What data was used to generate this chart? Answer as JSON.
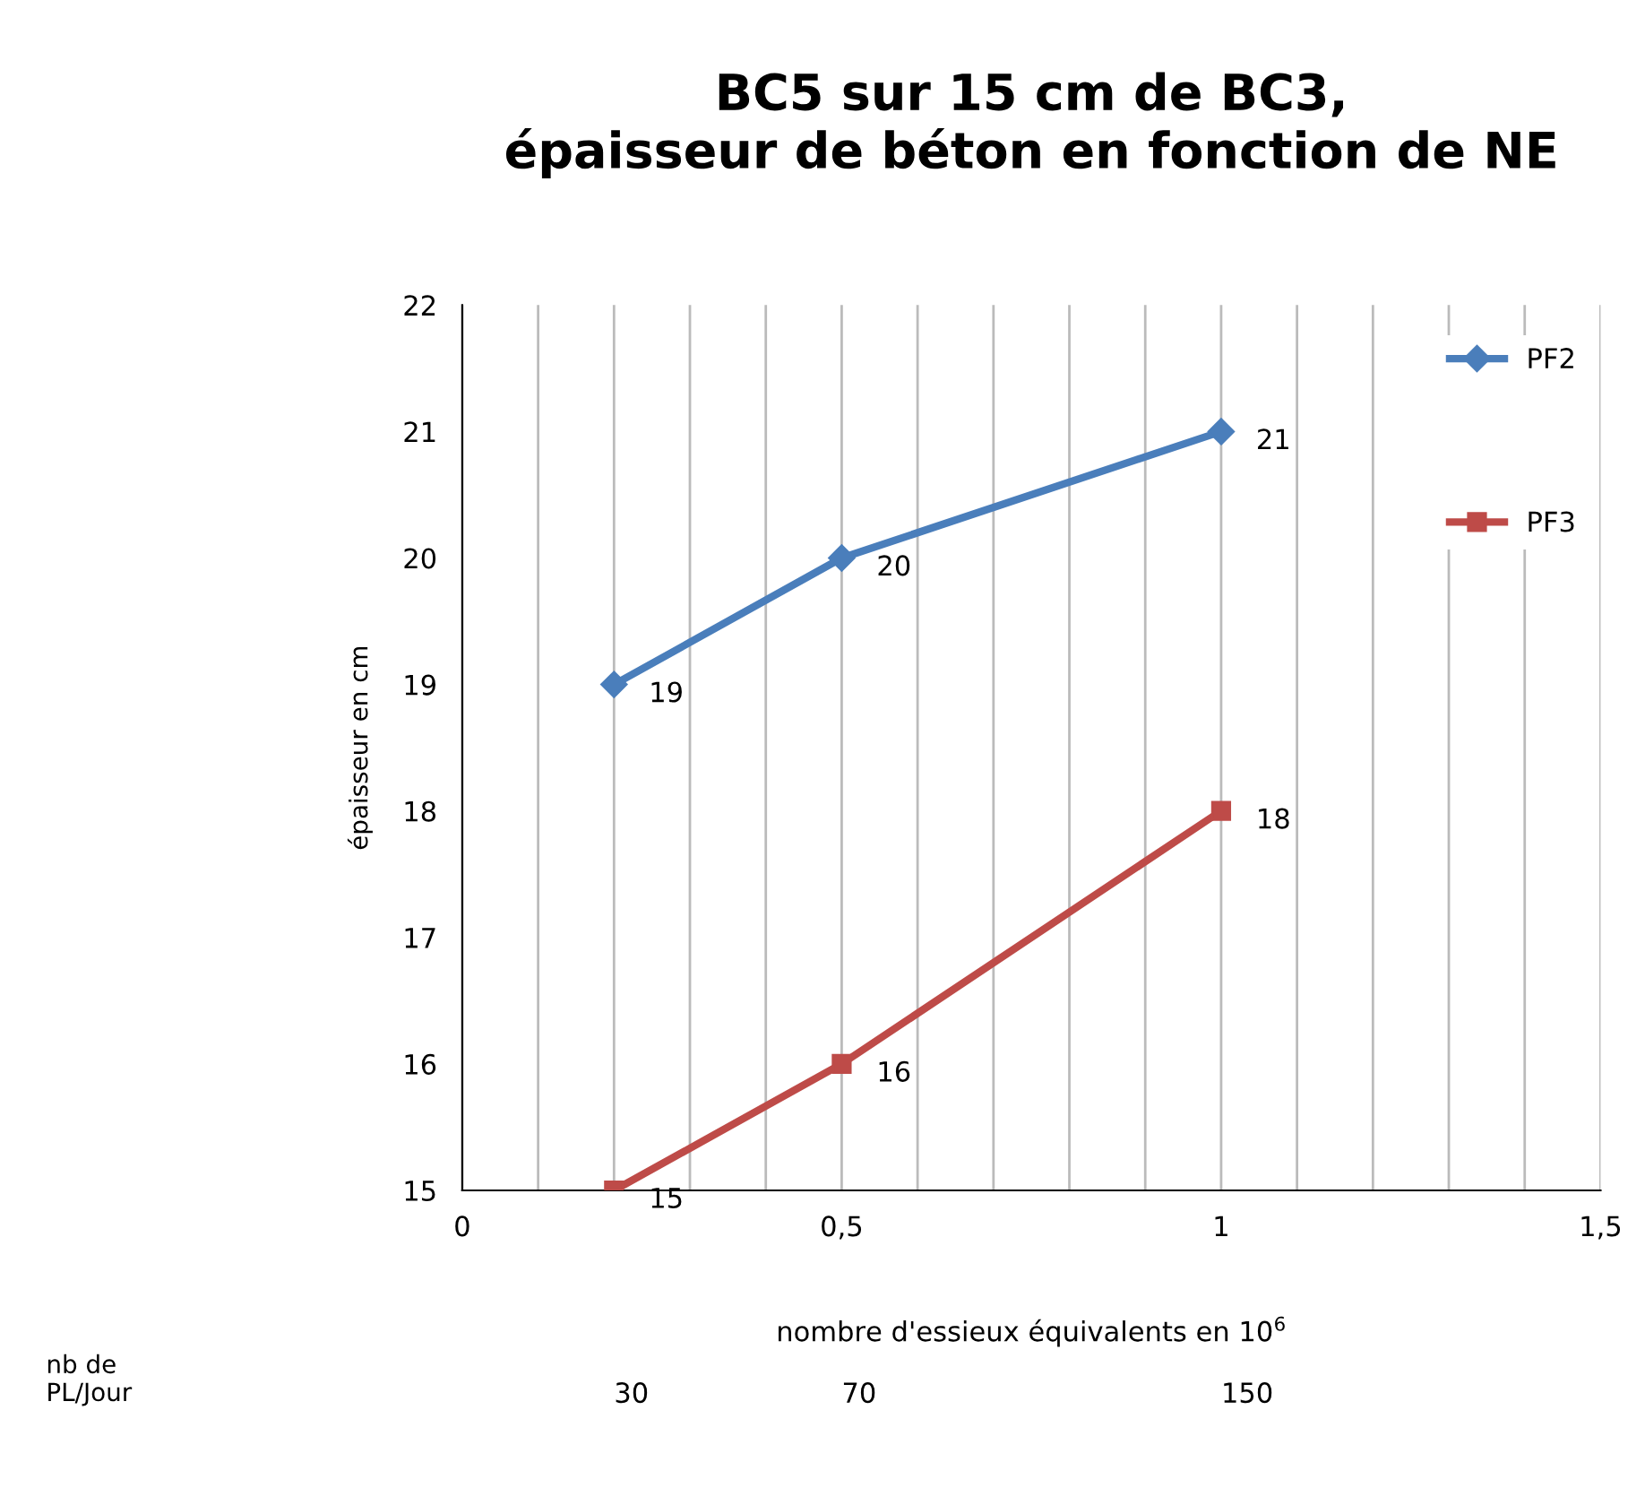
{
  "chart_data": {
    "type": "line",
    "title": "BC5 sur 15 cm de BC3,\népaisseur de béton en fonction de NE",
    "xlabel": "nombre d'essieux équivalents en 10$^{6}$",
    "ylabel": "épaisseur en cm",
    "x": [
      0.2,
      0.5,
      1
    ],
    "series": [
      {
        "name": "PF2",
        "color": "#4a7ebb",
        "marker": "diamond",
        "values": [
          19,
          20,
          21
        ]
      },
      {
        "name": "PF3",
        "color": "#be4b48",
        "marker": "square",
        "values": [
          15,
          16,
          18
        ]
      }
    ],
    "xlim": [
      0,
      1.5
    ],
    "xticks": [
      0,
      {
        "value": 0.1,
        "label": null
      },
      {
        "value": 0.2,
        "label": null
      },
      {
        "value": 0.3,
        "label": null
      },
      {
        "value": 0.4,
        "label": null
      },
      {
        "value": 0.5,
        "label": "0,5"
      },
      {
        "value": 0.6,
        "label": null
      },
      {
        "value": 0.7,
        "label": null
      },
      {
        "value": 0.8,
        "label": null
      },
      {
        "value": 0.9,
        "label": null
      },
      1,
      {
        "value": 1.1,
        "label": null
      },
      {
        "value": 1.2,
        "label": null
      },
      {
        "value": 1.3,
        "label": null
      },
      {
        "value": 1.4,
        "label": null
      },
      {
        "value": 1.5,
        "label": "1,5"
      }
    ],
    "ylim": [
      15,
      22
    ],
    "yticks": [
      15,
      16,
      17,
      18,
      19,
      20,
      21,
      22
    ],
    "grid": "x",
    "legend": "top right",
    "data_labels": true,
    "line_style": "solid",
    "annotations": [
      "nb de\nPL/Jour",
      "30",
      "70",
      "150"
    ]
  }
}
